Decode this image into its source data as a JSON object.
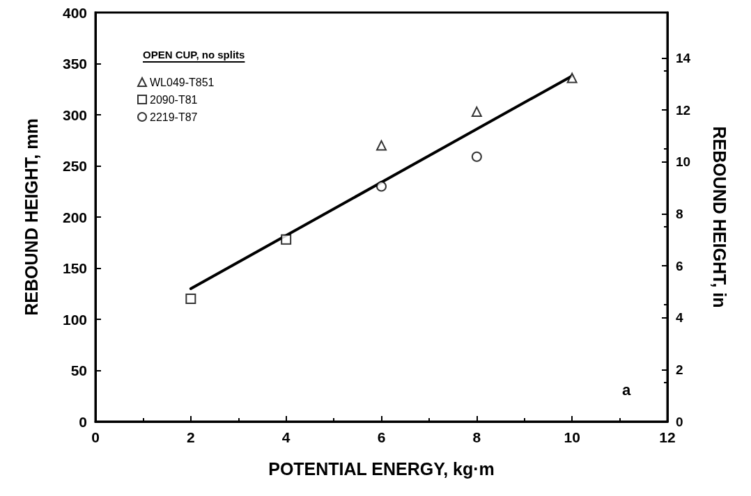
{
  "chart_data": {
    "type": "scatter",
    "xlabel": "POTENTIAL ENERGY, kg·m",
    "ylabel": "REBOUND HEIGHT, mm",
    "y2label": "REBOUND HEIGHT, in",
    "legend_title": "OPEN CUP, no splits",
    "legend": "top left",
    "grid": false,
    "xlim": [
      0,
      12
    ],
    "xticks": [
      0,
      2,
      4,
      6,
      8,
      10,
      12
    ],
    "ylim": [
      0,
      400
    ],
    "yticks": [
      0,
      50,
      100,
      150,
      200,
      250,
      300,
      350,
      400
    ],
    "y2lim": [
      0,
      15.75
    ],
    "y2ticks": [
      0,
      2,
      4,
      6,
      8,
      10,
      12,
      14
    ],
    "annotations": [
      "a"
    ],
    "series": [
      {
        "type": "line",
        "color": "#000000",
        "marker": "none",
        "line_style": "solid",
        "x": [
          2,
          10
        ],
        "values": [
          130,
          338
        ]
      },
      {
        "name": "WL049-T851",
        "color": "#000000",
        "marker": "triangle",
        "x": [
          6,
          8,
          10
        ],
        "values": [
          270,
          303,
          336
        ]
      },
      {
        "name": "2090-T81",
        "color": "#000000",
        "marker": "square",
        "x": [
          2,
          4
        ],
        "values": [
          120,
          178
        ]
      },
      {
        "name": "2219-T87",
        "color": "#000000",
        "marker": "circle",
        "x": [
          6,
          8
        ],
        "values": [
          230,
          259
        ]
      }
    ]
  }
}
